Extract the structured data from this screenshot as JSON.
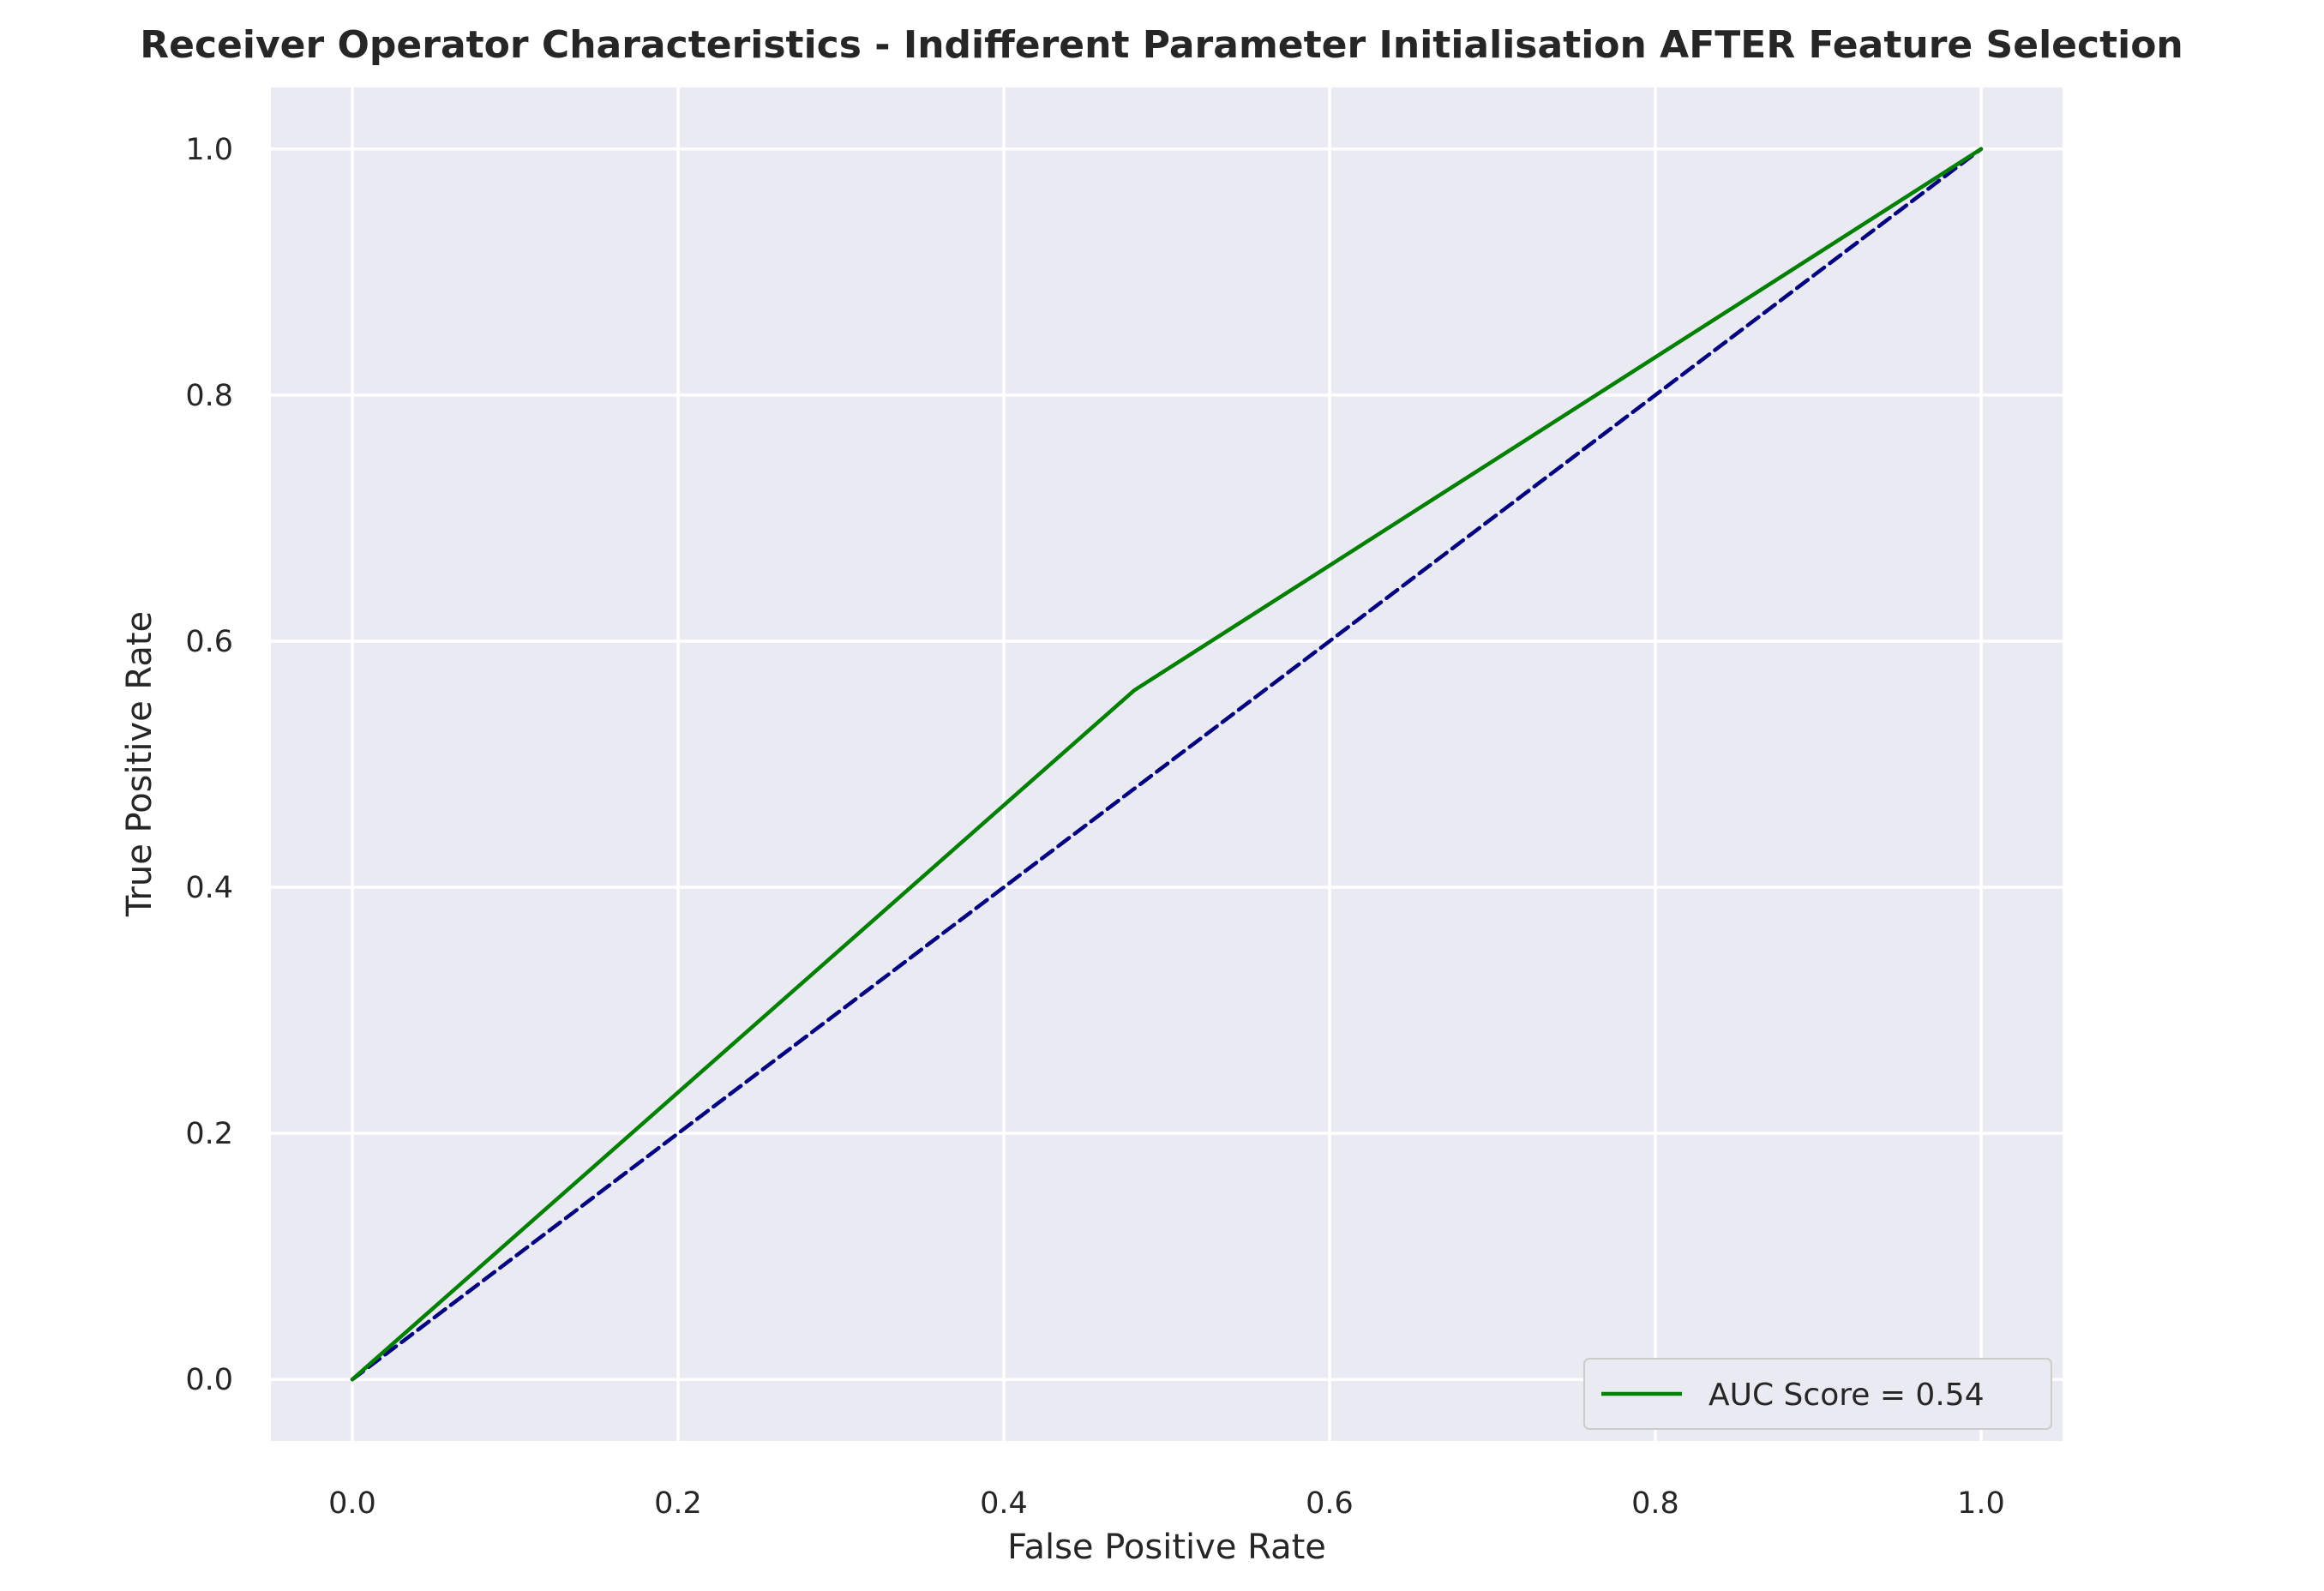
{
  "chart_data": {
    "type": "line",
    "title": "Receiver Operator Characteristics - Indifferent Parameter Initialisation AFTER Feature Selection",
    "xlabel": "False Positive Rate",
    "ylabel": "True Positive Rate",
    "xlim": [
      -0.05,
      1.05
    ],
    "ylim": [
      -0.05,
      1.05
    ],
    "xticks": [
      "0.0",
      "0.2",
      "0.4",
      "0.6",
      "0.8",
      "1.0"
    ],
    "yticks": [
      "0.0",
      "0.2",
      "0.4",
      "0.6",
      "0.8",
      "1.0"
    ],
    "grid": true,
    "background_color": "#eaeaf2",
    "grid_color": "#ffffff",
    "legend_position": "lower-right",
    "series": [
      {
        "name": "AUC Score = 0.54",
        "color": "#008000",
        "style": "solid",
        "x": [
          0.0,
          0.48,
          1.0
        ],
        "y": [
          0.0,
          0.56,
          1.0
        ]
      },
      {
        "color": "#000080",
        "style": "dashed",
        "x": [
          0.0,
          1.0
        ],
        "y": [
          0.0,
          1.0
        ]
      }
    ]
  }
}
